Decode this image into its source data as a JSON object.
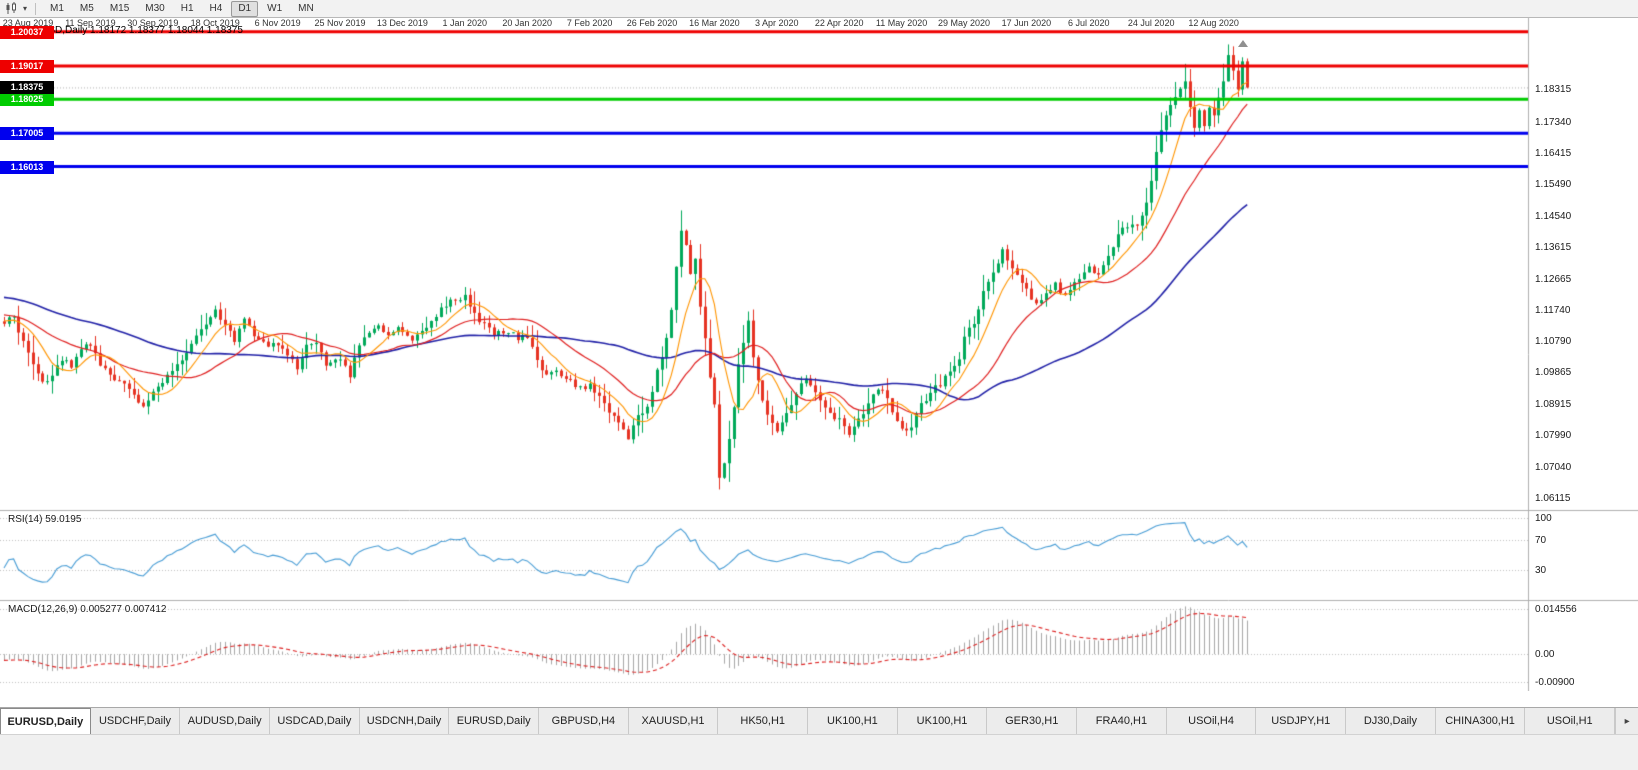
{
  "icons": {
    "dropdown_caret": "▾",
    "tab_scroll_right": "▸"
  },
  "toolbar": {
    "timeframes": [
      "M1",
      "M5",
      "M15",
      "M30",
      "H1",
      "H4",
      "D1",
      "W1",
      "MN"
    ],
    "active_timeframe": "D1"
  },
  "chart": {
    "header_text": "EURUSD,Daily 1.18172 1.18377 1.18044 1.18375",
    "y_axis_labels": [
      "1.18315",
      "1.17340",
      "1.16415",
      "1.15490",
      "1.14540",
      "1.13615",
      "1.12665",
      "1.11740",
      "1.10790",
      "1.09865",
      "1.08915",
      "1.07990",
      "1.07040",
      "1.06115"
    ],
    "current_price_tag": {
      "label": "1.18375",
      "bg": "#000000"
    },
    "x_axis_labels": [
      "23 Aug 2019",
      "11 Sep 2019",
      "30 Sep 2019",
      "18 Oct 2019",
      "6 Nov 2019",
      "25 Nov 2019",
      "13 Dec 2019",
      "1 Jan 2020",
      "20 Jan 2020",
      "7 Feb 2020",
      "26 Feb 2020",
      "16 Mar 2020",
      "3 Apr 2020",
      "22 Apr 2020",
      "11 May 2020",
      "29 May 2020",
      "17 Jun 2020",
      "6 Jul 2020",
      "24 Jul 2020",
      "12 Aug 2020"
    ]
  },
  "rsi": {
    "label": "RSI(14) 59.0195",
    "levels": [
      100,
      70,
      30
    ],
    "color": "#4a9ed6"
  },
  "macd": {
    "label": "MACD(12,26,9) 0.005277 0.007412",
    "axis_labels": [
      "0.014556",
      "0.00",
      "-0.00900"
    ],
    "axis_values": [
      0.014556,
      0,
      -0.009
    ]
  },
  "tabs": {
    "active_index": 0,
    "items": [
      "EURUSD,Daily",
      "USDCHF,Daily",
      "AUDUSD,Daily",
      "USDCAD,Daily",
      "USDCNH,Daily",
      "EURUSD,Daily",
      "GBPUSD,H4",
      "XAUUSD,H1",
      "HK50,H1",
      "UK100,H1",
      "UK100,H1",
      "GER30,H1",
      "FRA40,H1",
      "USOil,H4",
      "USDJPY,H1",
      "DJ30,Daily",
      "CHINA300,H1",
      "USOil,H1"
    ]
  },
  "chart_data": {
    "type": "candlestick",
    "symbol": "EURUSD",
    "timeframe": "Daily",
    "ohlc_display": {
      "open": "1.18172",
      "high": "1.18377",
      "low": "1.18044",
      "close": "1.18375"
    },
    "price_axis": {
      "min": 1.0575,
      "max": 1.2045
    },
    "candle_count": 260,
    "last_close": 1.18375,
    "candle_colors": {
      "up": "#00a95a",
      "down": "#e63323"
    },
    "warmup_anchors": [
      [
        -60,
        1.124
      ],
      [
        -45,
        1.128
      ],
      [
        -30,
        1.122
      ],
      [
        -15,
        1.117
      ]
    ],
    "close_anchors": [
      [
        0,
        1.1135
      ],
      [
        2,
        1.115
      ],
      [
        4,
        1.108
      ],
      [
        6,
        1.101
      ],
      [
        8,
        1.095
      ],
      [
        10,
        1.0975
      ],
      [
        12,
        1.103
      ],
      [
        14,
        1.1
      ],
      [
        16,
        1.1065
      ],
      [
        18,
        1.107
      ],
      [
        20,
        1.101
      ],
      [
        22,
        1.0985
      ],
      [
        24,
        1.096
      ],
      [
        26,
        1.093
      ],
      [
        29,
        1.089
      ],
      [
        31,
        1.0925
      ],
      [
        33,
        1.0955
      ],
      [
        35,
        1.0985
      ],
      [
        37,
        1.1025
      ],
      [
        39,
        1.1065
      ],
      [
        41,
        1.1125
      ],
      [
        44,
        1.1165
      ],
      [
        46,
        1.112
      ],
      [
        48,
        1.108
      ],
      [
        50,
        1.114
      ],
      [
        52,
        1.11
      ],
      [
        54,
        1.107
      ],
      [
        57,
        1.1075
      ],
      [
        59,
        1.103
      ],
      [
        61,
        1.1005
      ],
      [
        63,
        1.106
      ],
      [
        65,
        1.108
      ],
      [
        67,
        1.1015
      ],
      [
        70,
        1.102
      ],
      [
        72,
        1.098
      ],
      [
        74,
        1.106
      ],
      [
        76,
        1.111
      ],
      [
        78,
        1.113
      ],
      [
        80,
        1.1105
      ],
      [
        83,
        1.1115
      ],
      [
        85,
        1.1085
      ],
      [
        87,
        1.1115
      ],
      [
        89,
        1.1145
      ],
      [
        91,
        1.1175
      ],
      [
        93,
        1.1205
      ],
      [
        96,
        1.1215
      ],
      [
        98,
        1.116
      ],
      [
        100,
        1.1125
      ],
      [
        102,
        1.1095
      ],
      [
        104,
        1.1105
      ],
      [
        106,
        1.1095
      ],
      [
        109,
        1.1085
      ],
      [
        111,
        1.102
      ],
      [
        113,
        1.0985
      ],
      [
        115,
        1.0995
      ],
      [
        117,
        1.0975
      ],
      [
        119,
        1.095
      ],
      [
        122,
        1.0945
      ],
      [
        124,
        1.0915
      ],
      [
        126,
        1.0865
      ],
      [
        128,
        1.0835
      ],
      [
        130,
        1.0795
      ],
      [
        132,
        1.085
      ],
      [
        134,
        1.088
      ],
      [
        136,
        1.0985
      ],
      [
        138,
        1.1085
      ],
      [
        139,
        1.118
      ],
      [
        140,
        1.13
      ],
      [
        141,
        1.142
      ],
      [
        142,
        1.136
      ],
      [
        143,
        1.129
      ],
      [
        144,
        1.133
      ],
      [
        145,
        1.118
      ],
      [
        146,
        1.109
      ],
      [
        147,
        1.098
      ],
      [
        148,
        1.089
      ],
      [
        149,
        1.068
      ],
      [
        150,
        1.072
      ],
      [
        151,
        1.079
      ],
      [
        152,
        1.088
      ],
      [
        153,
        1.101
      ],
      [
        154,
        1.108
      ],
      [
        155,
        1.113
      ],
      [
        156,
        1.1035
      ],
      [
        157,
        1.0965
      ],
      [
        158,
        1.0905
      ],
      [
        159,
        1.0855
      ],
      [
        161,
        1.08
      ],
      [
        163,
        1.086
      ],
      [
        165,
        1.0915
      ],
      [
        167,
        1.097
      ],
      [
        169,
        1.092
      ],
      [
        171,
        1.0875
      ],
      [
        174,
        1.0845
      ],
      [
        176,
        1.0795
      ],
      [
        178,
        1.0845
      ],
      [
        180,
        1.0895
      ],
      [
        182,
        1.0945
      ],
      [
        184,
        1.09
      ],
      [
        187,
        1.0815
      ],
      [
        189,
        1.083
      ],
      [
        191,
        1.0895
      ],
      [
        193,
        1.0925
      ],
      [
        195,
        1.0955
      ],
      [
        197,
        1.0985
      ],
      [
        199,
        1.1035
      ],
      [
        200,
        1.1095
      ],
      [
        202,
        1.1135
      ],
      [
        204,
        1.1225
      ],
      [
        206,
        1.1285
      ],
      [
        208,
        1.1355
      ],
      [
        210,
        1.1295
      ],
      [
        212,
        1.1255
      ],
      [
        213,
        1.124
      ],
      [
        215,
        1.1185
      ],
      [
        217,
        1.1215
      ],
      [
        219,
        1.1245
      ],
      [
        221,
        1.1215
      ],
      [
        223,
        1.125
      ],
      [
        226,
        1.1305
      ],
      [
        228,
        1.1275
      ],
      [
        230,
        1.133
      ],
      [
        232,
        1.1395
      ],
      [
        234,
        1.1425
      ],
      [
        236,
        1.1415
      ],
      [
        238,
        1.1495
      ],
      [
        239,
        1.156
      ],
      [
        240,
        1.164
      ],
      [
        241,
        1.171
      ],
      [
        242,
        1.175
      ],
      [
        243,
        1.1785
      ],
      [
        244,
        1.181
      ],
      [
        245,
        1.184
      ],
      [
        246,
        1.1845
      ],
      [
        247,
        1.1775
      ],
      [
        248,
        1.1725
      ],
      [
        249,
        1.1765
      ],
      [
        250,
        1.173
      ],
      [
        251,
        1.1785
      ],
      [
        252,
        1.1755
      ],
      [
        253,
        1.1805
      ],
      [
        254,
        1.1845
      ],
      [
        255,
        1.193
      ],
      [
        256,
        1.1895
      ],
      [
        257,
        1.1835
      ],
      [
        258,
        1.1915
      ],
      [
        259,
        1.18375
      ]
    ],
    "marked_extremes": [
      {
        "index": 141,
        "type": "high",
        "price": 1.147
      },
      {
        "index": 149,
        "type": "low",
        "price": 1.0638
      },
      {
        "index": 246,
        "type": "high",
        "price": 1.1908
      },
      {
        "index": 255,
        "type": "high",
        "price": 1.1966
      }
    ],
    "moving_averages": [
      {
        "name": "slow",
        "period": 55,
        "color": "#2222a8",
        "width": 1.6
      },
      {
        "name": "medium",
        "period": 21,
        "color": "#e02020",
        "width": 1.2
      },
      {
        "name": "fast",
        "period": 8,
        "color": "#ff9500",
        "width": 1.1
      }
    ],
    "indicators": {
      "rsi": {
        "period": 14,
        "current": 59.0195,
        "color": "#4a9ed6"
      },
      "macd": {
        "fast": 12,
        "slow": 26,
        "signal": 9,
        "current_macd": 0.005277,
        "current_signal": 0.007412,
        "histogram_color": "#a8a8a8",
        "signal_color": "#dd2222"
      }
    },
    "horizontal_lines": [
      {
        "price": 1.20037,
        "label": "1.20037",
        "color": "#ee0000"
      },
      {
        "price": 1.19017,
        "label": "1.19017",
        "color": "#ee0000"
      },
      {
        "price": 1.18025,
        "label": "1.18025",
        "color": "#00cc00"
      },
      {
        "price": 1.17005,
        "label": "1.17005",
        "color": "#0000ee"
      },
      {
        "price": 1.16013,
        "label": "1.16013",
        "color": "#0000ee"
      }
    ],
    "x_label_first_index": 5,
    "x_label_step": 13
  }
}
